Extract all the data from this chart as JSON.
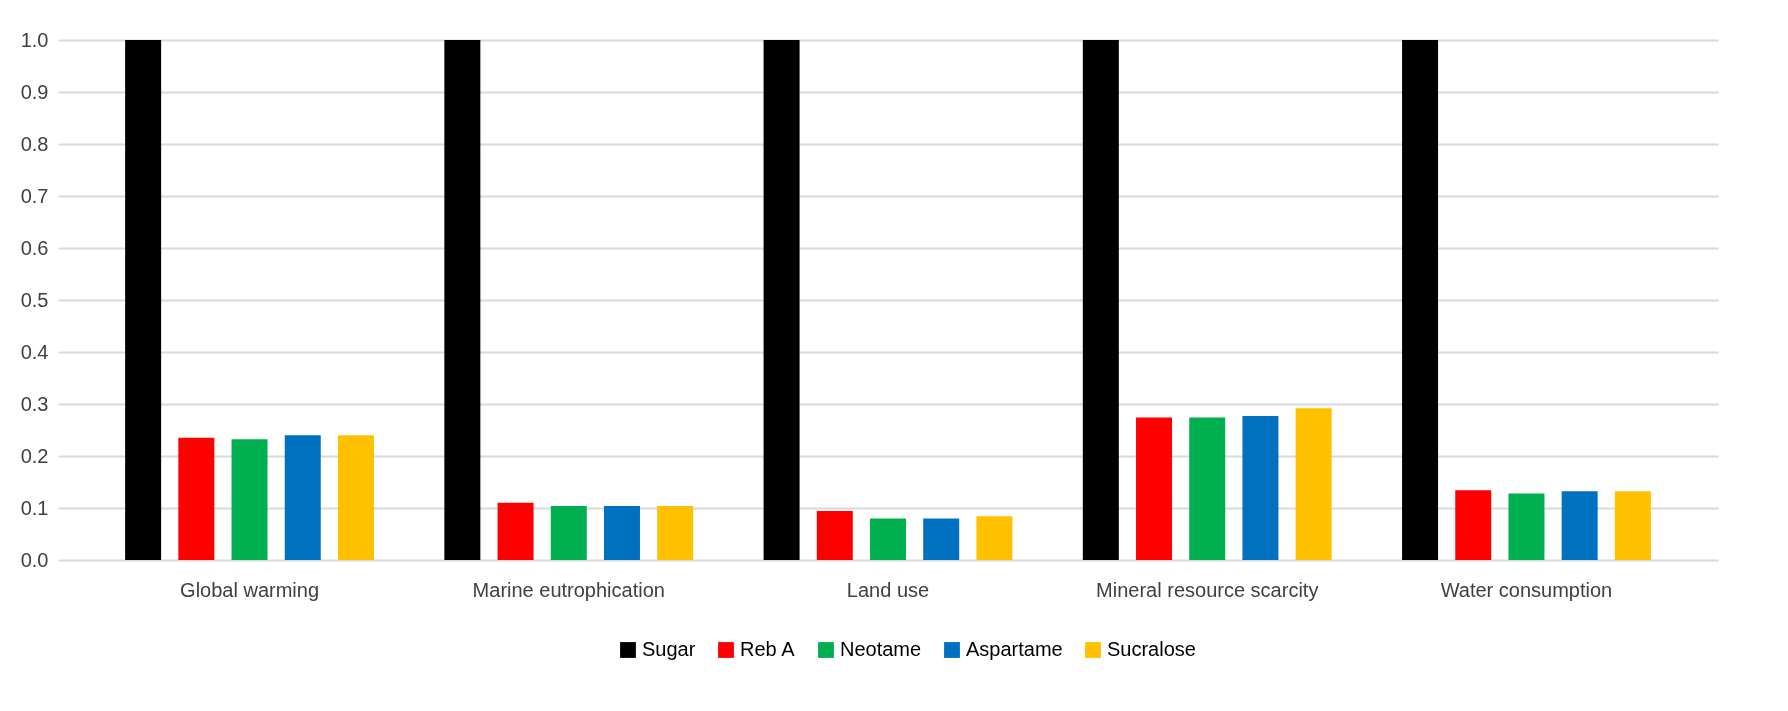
{
  "chart_data": {
    "type": "bar",
    "categories": [
      "Global warming",
      "Marine eutrophication",
      "Land use",
      "Mineral resource scarcity",
      "Water consumption"
    ],
    "series": [
      {
        "name": "Sugar",
        "color": "#000000",
        "values": [
          1.0,
          1.0,
          1.0,
          1.0,
          1.0
        ]
      },
      {
        "name": "Reb A",
        "color": "#ff0000",
        "values": [
          0.235,
          0.11,
          0.094,
          0.274,
          0.134
        ]
      },
      {
        "name": "Neotame",
        "color": "#00b050",
        "values": [
          0.232,
          0.104,
          0.08,
          0.274,
          0.128
        ]
      },
      {
        "name": "Aspartame",
        "color": "#0070c0",
        "values": [
          0.24,
          0.104,
          0.08,
          0.277,
          0.132
        ]
      },
      {
        "name": "Sucralose",
        "color": "#ffc000",
        "values": [
          0.24,
          0.104,
          0.084,
          0.292,
          0.132
        ]
      }
    ],
    "ylim": [
      0,
      1.0
    ],
    "yticks": [
      {
        "value": 0,
        "label": "0.0"
      },
      {
        "value": 0.1,
        "label": "0.1"
      },
      {
        "value": 0.2,
        "label": "0.2"
      },
      {
        "value": 0.3,
        "label": "0.3"
      },
      {
        "value": 0.4,
        "label": "0.4"
      },
      {
        "value": 0.5,
        "label": "0.5"
      },
      {
        "value": 0.6,
        "label": "0.6"
      },
      {
        "value": 0.7,
        "label": "0.7"
      },
      {
        "value": 0.8,
        "label": "0.8"
      },
      {
        "value": 0.9,
        "label": "0.9"
      },
      {
        "value": 1.0,
        "label": "1.0"
      }
    ],
    "grid": "y",
    "legend": "bottom"
  }
}
